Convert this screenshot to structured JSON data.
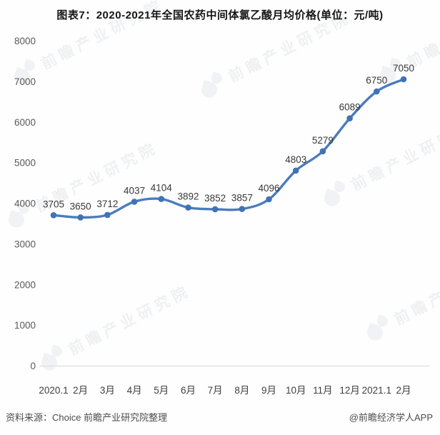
{
  "page": {
    "title": "图表7：2020-2021年全国农药中间体氯乙酸月均价格(单位：元/吨)"
  },
  "chart_data": {
    "type": "line",
    "title": "图表7：2020-2021年全国农药中间体氯乙酸月均价格(单位：元/吨)",
    "unit": "元/吨",
    "categories": [
      "2020.1",
      "2月",
      "3月",
      "4月",
      "5月",
      "6月",
      "7月",
      "8月",
      "9月",
      "10月",
      "11月",
      "12月",
      "2021.1",
      "2月"
    ],
    "values": [
      3705,
      3650,
      3712,
      4037,
      4104,
      3892,
      3852,
      3857,
      4096,
      4803,
      5279,
      6089,
      6750,
      7050
    ],
    "ylim": [
      0,
      8000
    ],
    "yticks": [
      0,
      1000,
      2000,
      3000,
      4000,
      5000,
      6000,
      7000,
      8000
    ],
    "grid": false,
    "legend_position": "none",
    "smooth": true,
    "marker": "circle",
    "data_labels": true,
    "colors": {
      "line": "#4a7cbd",
      "marker": "#4173b4",
      "axis_line": "#d8d8d8",
      "tick_text": "#595959",
      "category_text": "#404040",
      "data_label_text": "#383838"
    }
  },
  "watermark": {
    "text": "前瞻产业研究院"
  },
  "footer": {
    "source": "资料来源：Choice 前瞻产业研究院整理",
    "credit": "@前瞻经济学人APP"
  }
}
